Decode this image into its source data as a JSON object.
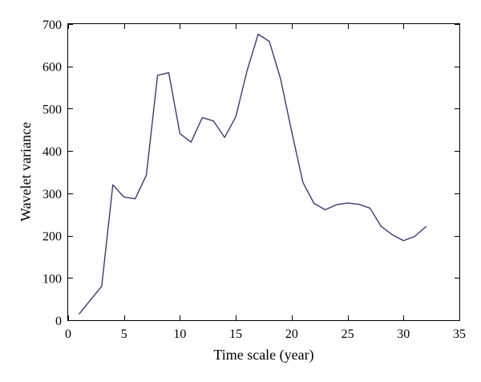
{
  "chart_data": {
    "type": "line",
    "xlabel": "Time scale (year)",
    "ylabel": "Wavelet variance",
    "xlim": [
      0,
      35
    ],
    "ylim": [
      0,
      700
    ],
    "xticks": [
      0,
      5,
      10,
      15,
      20,
      25,
      30,
      35
    ],
    "yticks": [
      0,
      100,
      200,
      300,
      400,
      500,
      600,
      700
    ],
    "grid": false,
    "series": [
      {
        "color": "#3a3a78",
        "x": [
          1,
          2,
          3,
          4,
          5,
          6,
          7,
          8,
          9,
          10,
          11,
          12,
          13,
          14,
          15,
          16,
          17,
          18,
          19,
          20,
          21,
          22,
          23,
          24,
          25,
          26,
          27,
          28,
          29,
          30,
          31,
          32
        ],
        "y": [
          15,
          48,
          80,
          320,
          291,
          287,
          343,
          579,
          585,
          441,
          421,
          479,
          471,
          432,
          481,
          589,
          676,
          659,
          571,
          446,
          326,
          276,
          261,
          273,
          277,
          274,
          265,
          222,
          202,
          188,
          198,
          221
        ]
      }
    ]
  }
}
